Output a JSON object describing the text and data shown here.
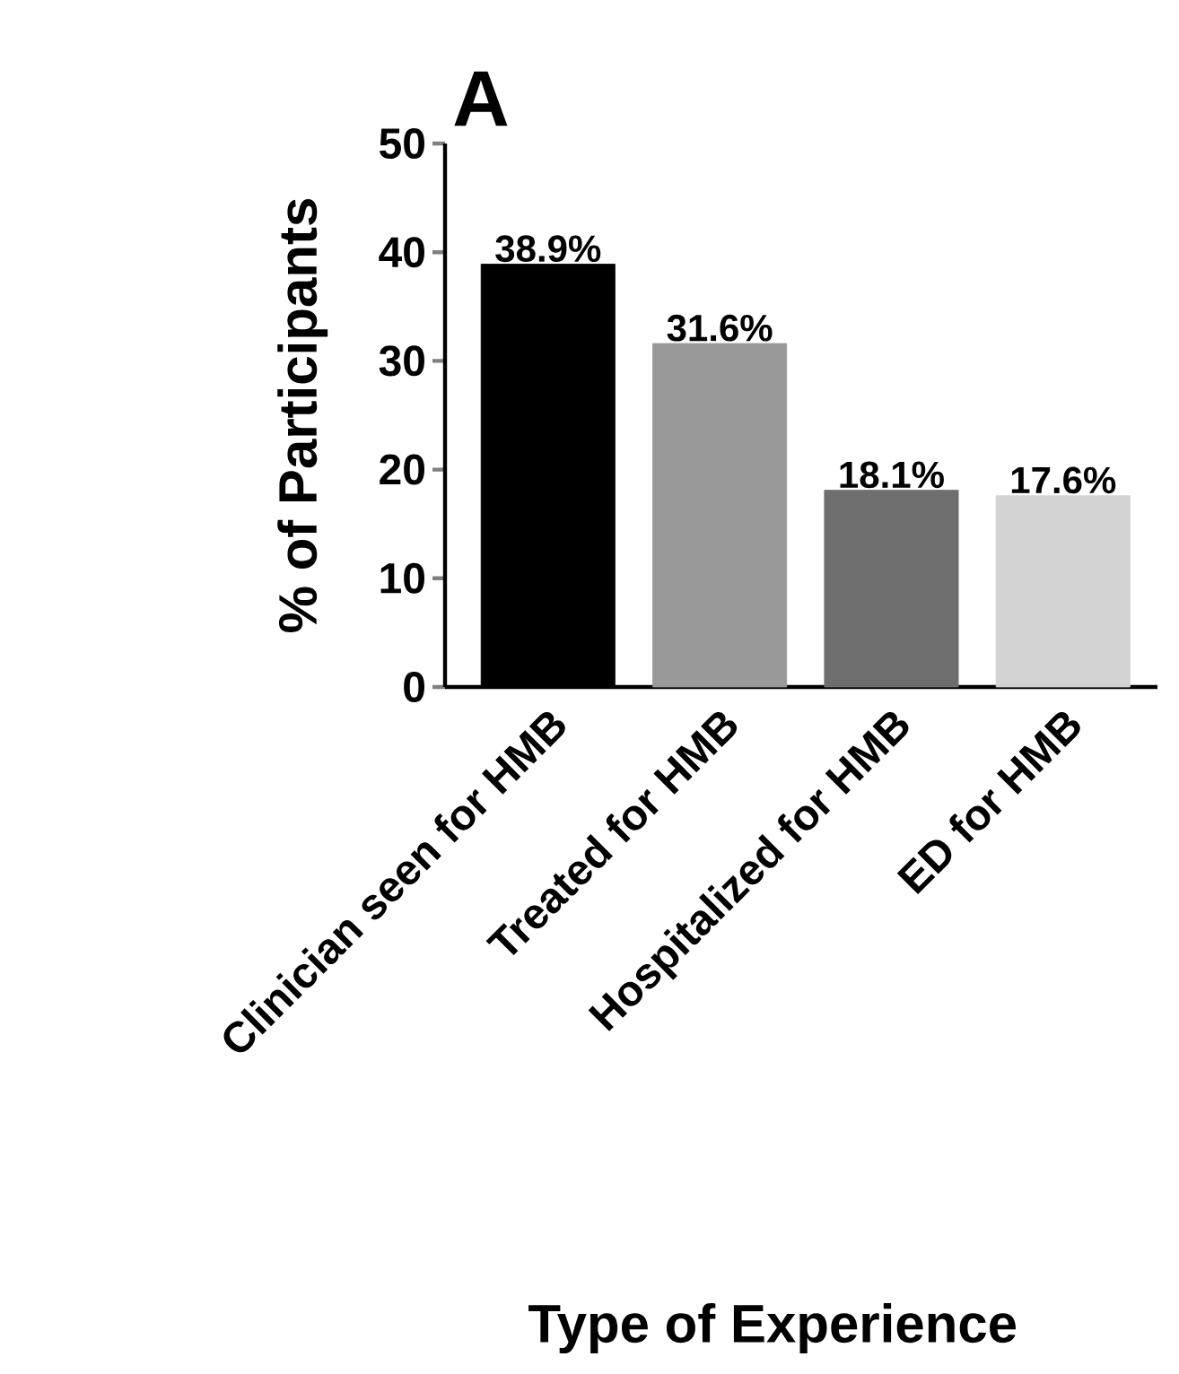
{
  "chart_data": {
    "type": "bar",
    "title": "A",
    "xlabel": "Type of Experience",
    "ylabel": "% of Participants",
    "categories": [
      "Clinician seen for HMB",
      "Treated for HMB",
      "Hospitalized for HMB",
      "ED for HMB"
    ],
    "values": [
      38.9,
      31.6,
      18.1,
      17.6
    ],
    "colors": [
      "#000000",
      "#999999",
      "#6e6e6e",
      "#d3d3d3"
    ],
    "value_labels": [
      "38.9%",
      "31.6%",
      "18.1%",
      "17.6%"
    ],
    "ylim": [
      0,
      50
    ],
    "yticks": [
      0,
      10,
      20,
      30,
      40,
      50
    ],
    "grid": false
  }
}
